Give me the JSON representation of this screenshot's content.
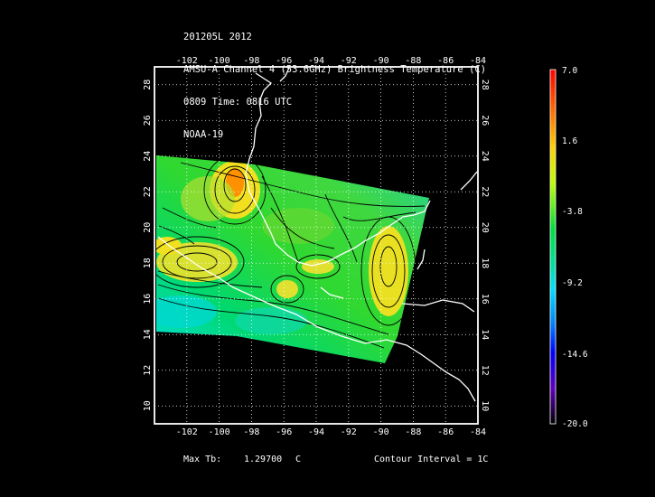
{
  "header": {
    "line1": "201205L 2012",
    "line2": "AMSU-A Channel 4 (53.6GHz) Brightness Temperature (C)",
    "line3": "0809 Time: 0816 UTC",
    "line4": "NOAA-19"
  },
  "axes": {
    "lon_ticks": [
      "-102",
      "-100",
      "-98",
      "-96",
      "-94",
      "-92",
      "-90",
      "-88",
      "-86",
      "-84"
    ],
    "lat_ticks": [
      "28",
      "26",
      "24",
      "22",
      "20",
      "18",
      "16",
      "14",
      "12",
      "10"
    ],
    "lon_range": [
      -104,
      -84
    ],
    "lat_range": [
      9,
      29
    ]
  },
  "colorbar": {
    "labels": [
      "7.0",
      "1.6",
      "-3.8",
      "-9.2",
      "-14.6",
      "-20.0"
    ],
    "range": [
      -20.0,
      7.0
    ],
    "colors": [
      "#ff0000",
      "#ff8000",
      "#ffff00",
      "#00d000",
      "#00ffff",
      "#0000ff",
      "#8000ff",
      "#000000"
    ]
  },
  "footer": {
    "max_label": "Max Tb:",
    "max_value": "1.29700",
    "max_unit": "C",
    "contour": "Contour Interval = 1C"
  },
  "chart_data": {
    "type": "heatmap",
    "title": "AMSU-A Channel 4 (53.6GHz) Brightness Temperature (C)",
    "xlabel": "",
    "ylabel": "",
    "x_range": [
      -104,
      -84
    ],
    "y_range": [
      9,
      29
    ],
    "value_range": [
      -20.0,
      7.0
    ],
    "max_tb": 1.297,
    "contour_interval": 1,
    "grid": true
  }
}
